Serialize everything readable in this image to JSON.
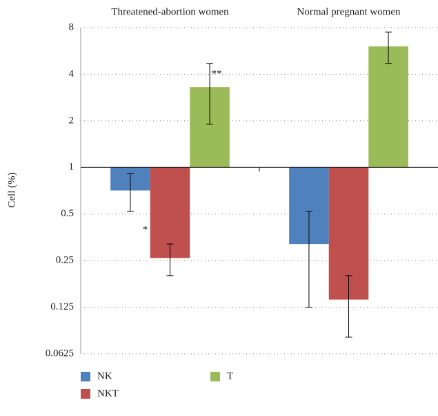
{
  "chart_data": {
    "type": "bar",
    "y_label": "Cell (%)",
    "log_scale": true,
    "log_base": 2,
    "grid": true,
    "baseline": 1,
    "categories": [
      "Threatened-abortion women",
      "Normal pregnant women"
    ],
    "series": [
      {
        "name": "NK",
        "color": "#4f81bd",
        "values": [
          0.71,
          0.32
        ],
        "lower": [
          0.52,
          0.125
        ],
        "upper": [
          0.91,
          0.52
        ]
      },
      {
        "name": "NKT",
        "color": "#c0504d",
        "values": [
          0.26,
          0.14
        ],
        "lower": [
          0.2,
          0.08
        ],
        "upper": [
          0.32,
          0.2
        ]
      },
      {
        "name": "T",
        "color": "#9bbb59",
        "values": [
          3.3,
          6.05
        ],
        "lower": [
          1.9,
          4.7
        ],
        "upper": [
          4.7,
          7.5
        ]
      }
    ],
    "annotations": [
      "*",
      "**"
    ],
    "ylim": [
      0.0625,
      8
    ],
    "yticks": [
      0.0625,
      0.125,
      0.25,
      0.5,
      1,
      2,
      4,
      8
    ],
    "legend": "bottom"
  }
}
